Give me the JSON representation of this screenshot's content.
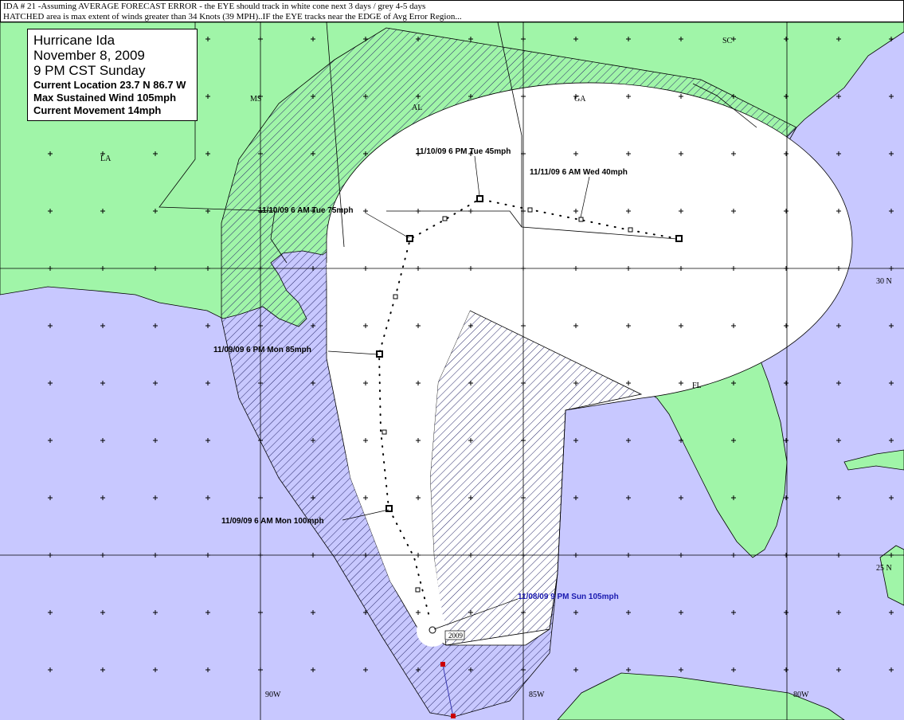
{
  "header": {
    "line1": "IDA # 21 -Assuming AVERAGE FORECAST ERROR - the EYE should track in white cone next 3 days / grey 4-5 days",
    "line2": "HATCHED area is max extent of winds greater than 34 Knots (39 MPH)..IF the EYE tracks near the EDGE of Avg Error Region..."
  },
  "info_box": {
    "title": "Hurricane Ida",
    "date": "November 8, 2009",
    "time": "9 PM CST Sunday",
    "location": "Current Location 23.7 N  86.7 W",
    "wind": "Max Sustained Wind 105mph",
    "movement": "Current Movement 14mph"
  },
  "states": [
    "SC",
    "MS",
    "AL",
    "GA",
    "LA",
    "FL"
  ],
  "grid_labels": [
    "30 N",
    "25 N",
    "90W",
    "85W",
    "80W"
  ],
  "forecast_labels": [
    "11/10/09  6 PM  Tue 45mph",
    "11/11/09  6 AM  Wed 40mph",
    "11/10/09  6 AM  Tue 75mph",
    "11/09/09  6 PM  Mon 85mph",
    "11/09/09  6 AM  Mon 100mph",
    "11/08/09  9 PM  Sun 105mph"
  ],
  "eye_tag": "2009"
}
